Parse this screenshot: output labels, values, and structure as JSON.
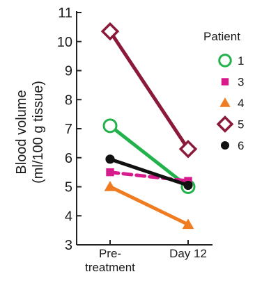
{
  "chart_data": {
    "type": "line",
    "categories": [
      "Pre-\ntreatment",
      "Day 12"
    ],
    "ylabel_line1": "Blood volume",
    "ylabel_line2": "(ml/100 g tissue)",
    "ylim": [
      3,
      11
    ],
    "yticks": [
      3,
      4,
      5,
      6,
      7,
      8,
      9,
      10,
      11
    ],
    "legend": {
      "title": "Patient",
      "placement": "right"
    },
    "series": [
      {
        "name": "1",
        "values": [
          7.1,
          5.0
        ],
        "color": "#22b24c",
        "marker": "open-circle",
        "dashed": false
      },
      {
        "name": "3",
        "values": [
          5.5,
          5.2
        ],
        "color": "#d81b8c",
        "marker": "square",
        "dashed": true
      },
      {
        "name": "4",
        "values": [
          5.0,
          3.7
        ],
        "color": "#f07c22",
        "marker": "triangle",
        "dashed": false
      },
      {
        "name": "5",
        "values": [
          10.35,
          6.3
        ],
        "color": "#8b1a3a",
        "marker": "open-diamond",
        "dashed": false
      },
      {
        "name": "6",
        "values": [
          5.95,
          5.05
        ],
        "color": "#111111",
        "marker": "filled-circle",
        "dashed": false
      }
    ]
  }
}
